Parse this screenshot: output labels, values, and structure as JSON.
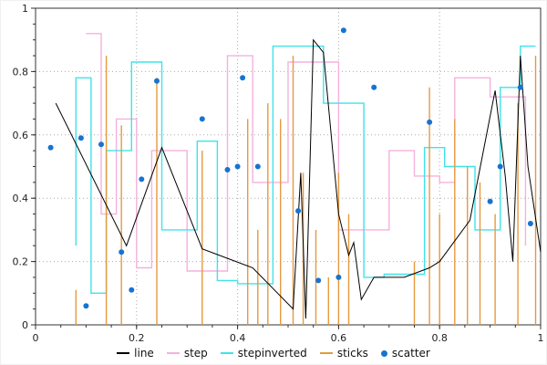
{
  "chart_data": {
    "type": "mixed",
    "title": "",
    "xlabel": "",
    "ylabel": "",
    "xlim": [
      0,
      1
    ],
    "ylim": [
      0,
      1
    ],
    "x_ticks": [
      0,
      0.2,
      0.4,
      0.6,
      0.8,
      1
    ],
    "y_ticks": [
      0,
      0.2,
      0.4,
      0.6,
      0.8,
      1
    ],
    "x_tick_labels": [
      "0",
      "0.2",
      "0.4",
      "0.6",
      "0.8",
      "1"
    ],
    "y_tick_labels": [
      "0",
      "0.2",
      "0.4",
      "0.6",
      "0.8",
      "1"
    ],
    "minor_tick_step": 0.05,
    "grid": "dotted",
    "grid_color": "#aaaaaa",
    "axis_color": "#333333",
    "legend_position": "bottom-center",
    "series": [
      {
        "name": "line",
        "type": "line",
        "color": "#000000",
        "points": [
          [
            0.04,
            0.7
          ],
          [
            0.18,
            0.25
          ],
          [
            0.25,
            0.56
          ],
          [
            0.33,
            0.24
          ],
          [
            0.43,
            0.18
          ],
          [
            0.51,
            0.05
          ],
          [
            0.525,
            0.48
          ],
          [
            0.535,
            0.02
          ],
          [
            0.55,
            0.9
          ],
          [
            0.57,
            0.86
          ],
          [
            0.6,
            0.35
          ],
          [
            0.62,
            0.22
          ],
          [
            0.63,
            0.26
          ],
          [
            0.645,
            0.08
          ],
          [
            0.67,
            0.15
          ],
          [
            0.73,
            0.15
          ],
          [
            0.78,
            0.18
          ],
          [
            0.8,
            0.2
          ],
          [
            0.86,
            0.33
          ],
          [
            0.91,
            0.74
          ],
          [
            0.93,
            0.47
          ],
          [
            0.945,
            0.2
          ],
          [
            0.96,
            0.85
          ],
          [
            0.975,
            0.5
          ],
          [
            1.0,
            0.23
          ]
        ]
      },
      {
        "name": "step",
        "type": "step-post",
        "color": "#f6b1dd",
        "points": [
          [
            0.1,
            0.92
          ],
          [
            0.13,
            0.35
          ],
          [
            0.16,
            0.65
          ],
          [
            0.2,
            0.18
          ],
          [
            0.23,
            0.55
          ],
          [
            0.3,
            0.17
          ],
          [
            0.38,
            0.85
          ],
          [
            0.43,
            0.45
          ],
          [
            0.5,
            0.83
          ],
          [
            0.6,
            0.3
          ],
          [
            0.7,
            0.55
          ],
          [
            0.75,
            0.47
          ],
          [
            0.8,
            0.45
          ],
          [
            0.83,
            0.78
          ],
          [
            0.9,
            0.72
          ],
          [
            0.97,
            0.25
          ]
        ]
      },
      {
        "name": "stepinverted",
        "type": "step-pre",
        "color": "#3fe3e8",
        "points": [
          [
            0.08,
            0.25
          ],
          [
            0.11,
            0.78
          ],
          [
            0.14,
            0.1
          ],
          [
            0.19,
            0.55
          ],
          [
            0.25,
            0.83
          ],
          [
            0.32,
            0.3
          ],
          [
            0.36,
            0.58
          ],
          [
            0.4,
            0.14
          ],
          [
            0.47,
            0.13
          ],
          [
            0.57,
            0.88
          ],
          [
            0.65,
            0.7
          ],
          [
            0.69,
            0.15
          ],
          [
            0.77,
            0.16
          ],
          [
            0.81,
            0.56
          ],
          [
            0.87,
            0.5
          ],
          [
            0.92,
            0.3
          ],
          [
            0.96,
            0.75
          ],
          [
            0.99,
            0.88
          ]
        ]
      },
      {
        "name": "sticks",
        "type": "sticks",
        "color": "#e59a3f",
        "points": [
          [
            0.08,
            0.11
          ],
          [
            0.14,
            0.85
          ],
          [
            0.17,
            0.63
          ],
          [
            0.24,
            0.78
          ],
          [
            0.33,
            0.55
          ],
          [
            0.42,
            0.65
          ],
          [
            0.44,
            0.3
          ],
          [
            0.46,
            0.7
          ],
          [
            0.485,
            0.65
          ],
          [
            0.51,
            0.85
          ],
          [
            0.53,
            0.48
          ],
          [
            0.555,
            0.3
          ],
          [
            0.58,
            0.15
          ],
          [
            0.6,
            0.48
          ],
          [
            0.62,
            0.35
          ],
          [
            0.75,
            0.2
          ],
          [
            0.78,
            0.75
          ],
          [
            0.8,
            0.35
          ],
          [
            0.83,
            0.65
          ],
          [
            0.855,
            0.5
          ],
          [
            0.88,
            0.45
          ],
          [
            0.91,
            0.35
          ],
          [
            0.955,
            0.7
          ],
          [
            0.99,
            0.85
          ]
        ]
      },
      {
        "name": "scatter",
        "type": "scatter",
        "color": "#1673d2",
        "points": [
          [
            0.03,
            0.56
          ],
          [
            0.09,
            0.59
          ],
          [
            0.1,
            0.06
          ],
          [
            0.13,
            0.57
          ],
          [
            0.17,
            0.23
          ],
          [
            0.19,
            0.11
          ],
          [
            0.21,
            0.46
          ],
          [
            0.24,
            0.77
          ],
          [
            0.33,
            0.65
          ],
          [
            0.38,
            0.49
          ],
          [
            0.4,
            0.5
          ],
          [
            0.41,
            0.78
          ],
          [
            0.44,
            0.5
          ],
          [
            0.52,
            0.36
          ],
          [
            0.56,
            0.14
          ],
          [
            0.6,
            0.15
          ],
          [
            0.61,
            0.93
          ],
          [
            0.67,
            0.75
          ],
          [
            0.78,
            0.64
          ],
          [
            0.9,
            0.39
          ],
          [
            0.92,
            0.5
          ],
          [
            0.96,
            0.75
          ],
          [
            0.98,
            0.32
          ]
        ]
      }
    ],
    "legend": [
      {
        "name": "line",
        "color": "#000000",
        "marker": "line"
      },
      {
        "name": "step",
        "color": "#f6b1dd",
        "marker": "line"
      },
      {
        "name": "stepinverted",
        "color": "#3fe3e8",
        "marker": "line"
      },
      {
        "name": "sticks",
        "color": "#e59a3f",
        "marker": "line"
      },
      {
        "name": "scatter",
        "color": "#1673d2",
        "marker": "dot"
      }
    ]
  }
}
